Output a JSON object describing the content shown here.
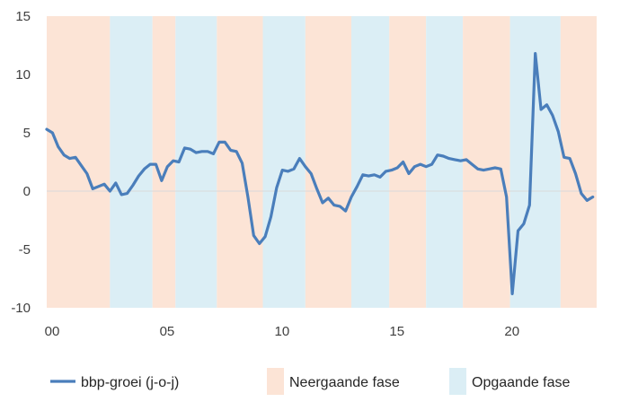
{
  "chart_data": {
    "type": "line",
    "x_unit": "year (00 = 2000)",
    "xlim": [
      0,
      23.92
    ],
    "ylim": [
      -10,
      15
    ],
    "y_ticks": [
      15,
      10,
      5,
      0,
      -5,
      -10
    ],
    "x_ticks": [
      {
        "value": 0,
        "label": "00"
      },
      {
        "value": 5,
        "label": "05"
      },
      {
        "value": 10,
        "label": "10"
      },
      {
        "value": 15,
        "label": "15"
      },
      {
        "value": 20,
        "label": "20"
      }
    ],
    "grid": false,
    "zero_line": true,
    "legend_placement": "bottom",
    "colors": {
      "line": "#4a7ebb",
      "downturn": "#fce4d6",
      "upturn": "#dbeef5",
      "zero_line": "#d9d9d9"
    },
    "phases": [
      {
        "phase": "Neergaande fase",
        "start": 0.0,
        "end": 2.75
      },
      {
        "phase": "Opgaande fase",
        "start": 2.75,
        "end": 4.6
      },
      {
        "phase": "Neergaande fase",
        "start": 4.6,
        "end": 5.6
      },
      {
        "phase": "Opgaande fase",
        "start": 5.6,
        "end": 7.4
      },
      {
        "phase": "Neergaande fase",
        "start": 7.4,
        "end": 9.4
      },
      {
        "phase": "Opgaande fase",
        "start": 9.4,
        "end": 11.25
      },
      {
        "phase": "Neergaande fase",
        "start": 11.25,
        "end": 13.25
      },
      {
        "phase": "Opgaande fase",
        "start": 13.25,
        "end": 14.9
      },
      {
        "phase": "Neergaande fase",
        "start": 14.9,
        "end": 16.5
      },
      {
        "phase": "Opgaande fase",
        "start": 16.5,
        "end": 18.1
      },
      {
        "phase": "Neergaande fase",
        "start": 18.1,
        "end": 20.15
      },
      {
        "phase": "Opgaande fase",
        "start": 20.15,
        "end": 22.35
      },
      {
        "phase": "Neergaande fase",
        "start": 22.35,
        "end": 23.92
      }
    ],
    "series": [
      {
        "name": "bbp-groei (j-o-j)",
        "points": [
          [
            0.0,
            5.3
          ],
          [
            0.25,
            5.0
          ],
          [
            0.5,
            3.8
          ],
          [
            0.75,
            3.1
          ],
          [
            1.0,
            2.8
          ],
          [
            1.25,
            2.9
          ],
          [
            1.5,
            2.2
          ],
          [
            1.75,
            1.5
          ],
          [
            2.0,
            0.2
          ],
          [
            2.25,
            0.4
          ],
          [
            2.5,
            0.6
          ],
          [
            2.75,
            0.0
          ],
          [
            3.0,
            0.7
          ],
          [
            3.25,
            -0.3
          ],
          [
            3.5,
            -0.2
          ],
          [
            3.75,
            0.5
          ],
          [
            4.0,
            1.3
          ],
          [
            4.25,
            1.9
          ],
          [
            4.5,
            2.3
          ],
          [
            4.75,
            2.3
          ],
          [
            5.0,
            0.9
          ],
          [
            5.25,
            2.1
          ],
          [
            5.5,
            2.6
          ],
          [
            5.75,
            2.5
          ],
          [
            6.0,
            3.7
          ],
          [
            6.25,
            3.6
          ],
          [
            6.5,
            3.3
          ],
          [
            6.75,
            3.4
          ],
          [
            7.0,
            3.4
          ],
          [
            7.25,
            3.2
          ],
          [
            7.5,
            4.2
          ],
          [
            7.75,
            4.2
          ],
          [
            8.0,
            3.5
          ],
          [
            8.25,
            3.4
          ],
          [
            8.5,
            2.4
          ],
          [
            8.75,
            -0.5
          ],
          [
            9.0,
            -3.8
          ],
          [
            9.25,
            -4.5
          ],
          [
            9.5,
            -3.9
          ],
          [
            9.75,
            -2.2
          ],
          [
            10.0,
            0.3
          ],
          [
            10.25,
            1.8
          ],
          [
            10.5,
            1.7
          ],
          [
            10.75,
            1.9
          ],
          [
            11.0,
            2.8
          ],
          [
            11.25,
            2.1
          ],
          [
            11.5,
            1.5
          ],
          [
            11.75,
            0.2
          ],
          [
            12.0,
            -1.0
          ],
          [
            12.25,
            -0.6
          ],
          [
            12.5,
            -1.2
          ],
          [
            12.75,
            -1.3
          ],
          [
            13.0,
            -1.7
          ],
          [
            13.25,
            -0.5
          ],
          [
            13.5,
            0.4
          ],
          [
            13.75,
            1.4
          ],
          [
            14.0,
            1.3
          ],
          [
            14.25,
            1.4
          ],
          [
            14.5,
            1.2
          ],
          [
            14.75,
            1.7
          ],
          [
            15.0,
            1.8
          ],
          [
            15.25,
            2.0
          ],
          [
            15.5,
            2.5
          ],
          [
            15.75,
            1.5
          ],
          [
            16.0,
            2.1
          ],
          [
            16.25,
            2.3
          ],
          [
            16.5,
            2.1
          ],
          [
            16.75,
            2.3
          ],
          [
            17.0,
            3.1
          ],
          [
            17.25,
            3.0
          ],
          [
            17.5,
            2.8
          ],
          [
            17.75,
            2.7
          ],
          [
            18.0,
            2.6
          ],
          [
            18.25,
            2.7
          ],
          [
            18.5,
            2.3
          ],
          [
            18.75,
            1.9
          ],
          [
            19.0,
            1.8
          ],
          [
            19.25,
            1.9
          ],
          [
            19.5,
            2.0
          ],
          [
            19.75,
            1.9
          ],
          [
            20.0,
            -0.5
          ],
          [
            20.25,
            -8.8
          ],
          [
            20.5,
            -3.4
          ],
          [
            20.75,
            -2.8
          ],
          [
            21.0,
            -1.2
          ],
          [
            21.25,
            11.8
          ],
          [
            21.5,
            7.0
          ],
          [
            21.75,
            7.4
          ],
          [
            22.0,
            6.5
          ],
          [
            22.25,
            5.1
          ],
          [
            22.5,
            2.9
          ],
          [
            22.75,
            2.8
          ],
          [
            23.0,
            1.5
          ],
          [
            23.25,
            -0.2
          ],
          [
            23.5,
            -0.8
          ],
          [
            23.75,
            -0.5
          ]
        ]
      }
    ],
    "legend": [
      {
        "kind": "line",
        "label": "bbp-groei (j-o-j)",
        "color_key": "line"
      },
      {
        "kind": "box",
        "label": "Neergaande fase",
        "color_key": "downturn"
      },
      {
        "kind": "box",
        "label": "Opgaande fase",
        "color_key": "upturn"
      }
    ]
  }
}
